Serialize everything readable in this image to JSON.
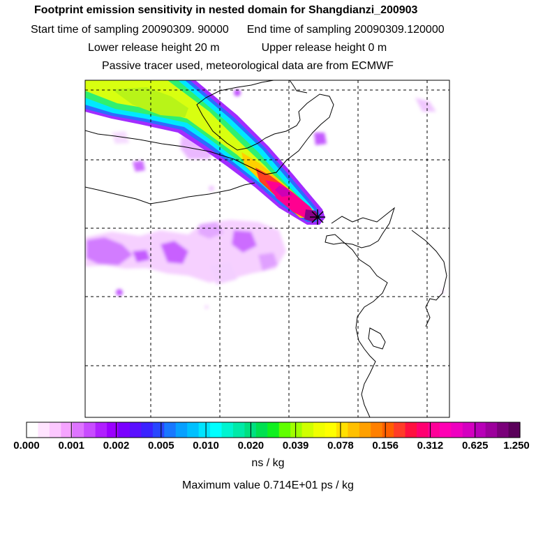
{
  "title": {
    "main": "Footprint emission sensitivity in nested domain for Shangdianzi_200903",
    "start_label": "Start time of sampling 20090309. 90000",
    "end_label": "End time of sampling 20090309.120000",
    "lower_label": "Lower release height   20 m",
    "upper_label": "Upper release height    0 m",
    "tracer_line": "Passive tracer used, meteorological data are from ECMWF"
  },
  "legend": {
    "ticks": [
      "0.000",
      "0.001",
      "0.002",
      "0.005",
      "0.010",
      "0.020",
      "0.039",
      "0.078",
      "0.156",
      "0.312",
      "0.625",
      "1.250"
    ],
    "colors": [
      "#ffffff",
      "#ffe4ff",
      "#fcc8ff",
      "#f5a4ff",
      "#de74ff",
      "#c84cff",
      "#b020ff",
      "#9b00ff",
      "#7a00ff",
      "#5a10ff",
      "#3a22ff",
      "#2846ff",
      "#1878ff",
      "#08a0ff",
      "#00c0ff",
      "#00e4ff",
      "#00ffff",
      "#00f4d0",
      "#00eaa8",
      "#00e080",
      "#00e050",
      "#10f020",
      "#60ff00",
      "#a0ff00",
      "#d0ff00",
      "#f0ff00",
      "#ffff00",
      "#ffe000",
      "#ffc000",
      "#ffa000",
      "#ff8000",
      "#ff6000",
      "#ff3c28",
      "#ff1040",
      "#ff0070",
      "#ff0098",
      "#ff00b4",
      "#ee00c0",
      "#d400c0",
      "#b800b8",
      "#9c009c",
      "#7a007a",
      "#5a005a"
    ],
    "units": "ns / kg",
    "max_value": "Maximum value  0.714E+01 ps / kg"
  },
  "map": {
    "receptor": "Shangdianzi",
    "grid": "dashed lat/lon lines",
    "colors": {
      "plume_core": "#ff0090",
      "plume_edge": "#b020ff",
      "low": "#e0a0ff"
    }
  }
}
